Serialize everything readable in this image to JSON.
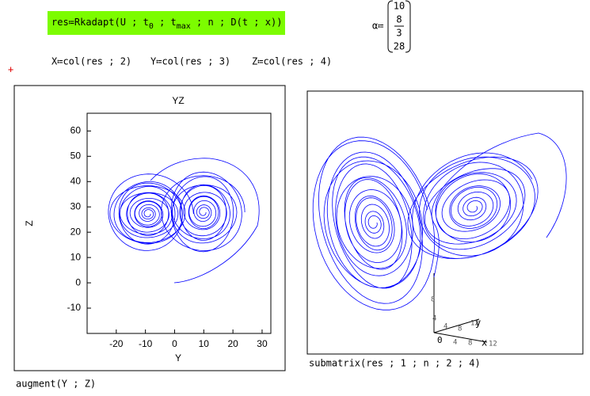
{
  "formula": [
    "res≔Rkadapt(U ; t",
    "0",
    " ; t",
    "max",
    " ; n ; D(t ; x))"
  ],
  "definitions": [
    "X≔col(res ; 2)",
    "Y≔col(res ; 3)",
    "Z≔col(res ; 4)"
  ],
  "alpha": {
    "name": "α≔",
    "values": [
      10,
      {
        "num": 8,
        "den": 3
      },
      28
    ]
  },
  "chart_data": {
    "type": "line",
    "title": "YZ",
    "xlabel": "Y",
    "ylabel": "Z",
    "xlim": [
      -30,
      33
    ],
    "xticks": [
      -20,
      -10,
      0,
      10,
      20,
      30
    ],
    "ylim": [
      -20,
      67
    ],
    "yticks": [
      -10,
      0,
      10,
      20,
      30,
      40,
      50,
      60
    ],
    "color": "#0000ff",
    "caption": "augment(Y ; Z)"
  },
  "plot3d": {
    "caption": "submatrix(res ; 1 ; n ; 2 ; 4)",
    "xticks": [
      4,
      8,
      12
    ],
    "yticks": [
      4,
      8,
      12
    ],
    "zticks": [
      4,
      8
    ],
    "origin": "0",
    "xlabel": "x",
    "ylabel": "y"
  }
}
